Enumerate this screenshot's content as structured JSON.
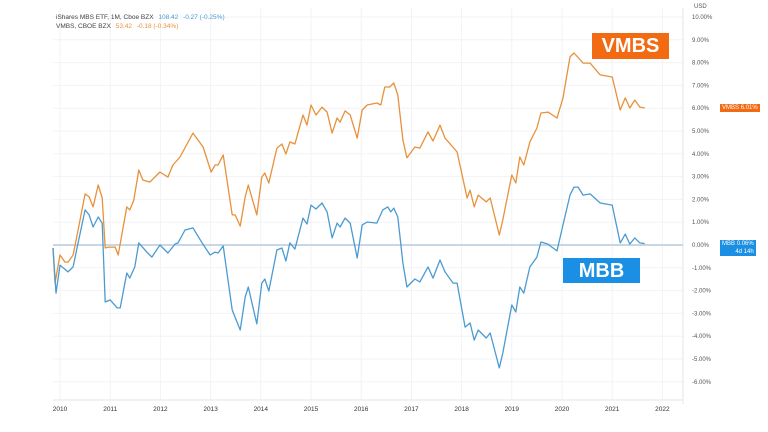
{
  "legend": {
    "series1": {
      "name": "iShares MBS ETF, 1M, Cboe BZX",
      "price": "108.42",
      "change": "-0.27 (-0.25%)"
    },
    "series2": {
      "name": "VMBS, CBOE BZX",
      "price": "53.42",
      "change": "-0.18 (-0.34%)"
    }
  },
  "annotations": {
    "vmbs_badge": "VMBS",
    "mbb_badge": "MBB"
  },
  "price_tags": {
    "vmbs": {
      "symbol": "VMBS",
      "value": "6.01%"
    },
    "mbb": {
      "symbol": "MBB",
      "value": "0.06%",
      "countdown": "4d 14h"
    }
  },
  "colors": {
    "vmbs": "#e8913a",
    "mbb": "#4b9bd1",
    "vmbs_badge": "#f26b12",
    "mbb_badge": "#1a8fe3",
    "baseline": "#c9d6e3"
  },
  "chart_data": {
    "type": "line",
    "title": "",
    "xlabel": "",
    "ylabel": "",
    "currency_label": "USD",
    "xlim": [
      2009.86,
      2022.35
    ],
    "ylim": [
      -6.8,
      10.3
    ],
    "x_ticks": [
      "2010",
      "2011",
      "2012",
      "2013",
      "2014",
      "2015",
      "2016",
      "2017",
      "2018",
      "2019",
      "2020",
      "2021",
      "2022"
    ],
    "y_ticks": [
      "10.00%",
      "9.00%",
      "8.00%",
      "7.00%",
      "6.00%",
      "5.00%",
      "4.00%",
      "3.00%",
      "2.00%",
      "1.00%",
      "0.00%",
      "-1.00%",
      "-2.00%",
      "-3.00%",
      "-4.00%",
      "-5.00%",
      "-6.00%"
    ],
    "y_tick_values": [
      10,
      9,
      8,
      7,
      6,
      5,
      4,
      3,
      2,
      1,
      0,
      -1,
      -2,
      -3,
      -4,
      -5,
      -6
    ],
    "grid": true,
    "baseline": 0,
    "series": [
      {
        "name": "VMBS",
        "points": [
          [
            2009.86,
            -0.13
          ],
          [
            2009.9,
            -1.67
          ],
          [
            2010.0,
            -0.44
          ],
          [
            2010.1,
            -0.75
          ],
          [
            2010.16,
            -0.75
          ],
          [
            2010.26,
            -0.44
          ],
          [
            2010.36,
            0.66
          ],
          [
            2010.5,
            2.24
          ],
          [
            2010.58,
            2.11
          ],
          [
            2010.66,
            1.67
          ],
          [
            2010.76,
            2.63
          ],
          [
            2010.84,
            2.06
          ],
          [
            2010.9,
            -0.13
          ],
          [
            2010.96,
            -0.09
          ],
          [
            2011.1,
            -0.09
          ],
          [
            2011.16,
            -0.44
          ],
          [
            2011.33,
            1.67
          ],
          [
            2011.39,
            1.54
          ],
          [
            2011.47,
            1.97
          ],
          [
            2011.57,
            3.29
          ],
          [
            2011.65,
            2.85
          ],
          [
            2011.79,
            2.76
          ],
          [
            2011.99,
            3.2
          ],
          [
            2012.15,
            2.98
          ],
          [
            2012.25,
            3.51
          ],
          [
            2012.39,
            3.86
          ],
          [
            2012.65,
            4.91
          ],
          [
            2012.85,
            4.3
          ],
          [
            2013.01,
            3.2
          ],
          [
            2013.09,
            3.51
          ],
          [
            2013.15,
            3.51
          ],
          [
            2013.25,
            3.95
          ],
          [
            2013.43,
            1.32
          ],
          [
            2013.49,
            1.32
          ],
          [
            2013.59,
            0.83
          ],
          [
            2013.69,
            2.11
          ],
          [
            2013.75,
            2.63
          ],
          [
            2013.92,
            1.32
          ],
          [
            2014.02,
            2.98
          ],
          [
            2014.08,
            3.16
          ],
          [
            2014.16,
            2.72
          ],
          [
            2014.32,
            4.25
          ],
          [
            2014.42,
            4.43
          ],
          [
            2014.5,
            3.99
          ],
          [
            2014.58,
            4.52
          ],
          [
            2014.68,
            4.43
          ],
          [
            2014.84,
            5.7
          ],
          [
            2014.92,
            5.26
          ],
          [
            2015.0,
            6.14
          ],
          [
            2015.1,
            5.7
          ],
          [
            2015.22,
            6.05
          ],
          [
            2015.32,
            5.83
          ],
          [
            2015.42,
            4.91
          ],
          [
            2015.52,
            5.57
          ],
          [
            2015.58,
            5.39
          ],
          [
            2015.68,
            5.88
          ],
          [
            2015.78,
            5.7
          ],
          [
            2015.92,
            4.69
          ],
          [
            2016.02,
            5.92
          ],
          [
            2016.12,
            6.14
          ],
          [
            2016.31,
            6.23
          ],
          [
            2016.39,
            6.14
          ],
          [
            2016.47,
            6.93
          ],
          [
            2016.57,
            6.93
          ],
          [
            2016.65,
            7.11
          ],
          [
            2016.73,
            6.58
          ],
          [
            2016.83,
            4.61
          ],
          [
            2016.91,
            3.82
          ],
          [
            2017.07,
            4.3
          ],
          [
            2017.17,
            4.25
          ],
          [
            2017.33,
            4.96
          ],
          [
            2017.43,
            4.56
          ],
          [
            2017.57,
            5.26
          ],
          [
            2017.67,
            4.69
          ],
          [
            2017.91,
            4.08
          ],
          [
            2018.11,
            2.06
          ],
          [
            2018.17,
            2.41
          ],
          [
            2018.25,
            1.67
          ],
          [
            2018.33,
            2.19
          ],
          [
            2018.49,
            1.89
          ],
          [
            2018.57,
            2.06
          ],
          [
            2018.75,
            0.44
          ],
          [
            2018.82,
            1.1
          ],
          [
            2019.0,
            3.07
          ],
          [
            2019.08,
            2.72
          ],
          [
            2019.16,
            3.86
          ],
          [
            2019.24,
            3.51
          ],
          [
            2019.36,
            4.52
          ],
          [
            2019.5,
            5.13
          ],
          [
            2019.58,
            5.79
          ],
          [
            2019.72,
            5.83
          ],
          [
            2019.9,
            5.57
          ],
          [
            2020.02,
            6.45
          ],
          [
            2020.16,
            8.25
          ],
          [
            2020.24,
            8.42
          ],
          [
            2020.42,
            7.98
          ],
          [
            2020.56,
            7.98
          ],
          [
            2020.76,
            7.46
          ],
          [
            2021.0,
            7.37
          ],
          [
            2021.16,
            5.92
          ],
          [
            2021.26,
            6.45
          ],
          [
            2021.35,
            6.01
          ],
          [
            2021.45,
            6.36
          ],
          [
            2021.55,
            6.05
          ],
          [
            2021.65,
            6.01
          ]
        ]
      },
      {
        "name": "MBB",
        "points": [
          [
            2009.86,
            -0.13
          ],
          [
            2009.92,
            -2.11
          ],
          [
            2010.0,
            -0.88
          ],
          [
            2010.16,
            -1.18
          ],
          [
            2010.26,
            -0.96
          ],
          [
            2010.36,
            0.09
          ],
          [
            2010.5,
            1.54
          ],
          [
            2010.58,
            1.32
          ],
          [
            2010.66,
            0.79
          ],
          [
            2010.76,
            1.23
          ],
          [
            2010.84,
            0.96
          ],
          [
            2010.9,
            -2.5
          ],
          [
            2011.0,
            -2.41
          ],
          [
            2011.14,
            -2.76
          ],
          [
            2011.2,
            -2.76
          ],
          [
            2011.33,
            -1.23
          ],
          [
            2011.39,
            -1.45
          ],
          [
            2011.49,
            -0.96
          ],
          [
            2011.57,
            0.09
          ],
          [
            2011.73,
            -0.31
          ],
          [
            2011.83,
            -0.53
          ],
          [
            2011.99,
            0.0
          ],
          [
            2012.15,
            -0.35
          ],
          [
            2012.29,
            0.04
          ],
          [
            2012.35,
            0.09
          ],
          [
            2012.49,
            0.66
          ],
          [
            2012.65,
            0.75
          ],
          [
            2012.83,
            0.09
          ],
          [
            2012.99,
            -0.44
          ],
          [
            2013.09,
            -0.31
          ],
          [
            2013.15,
            -0.35
          ],
          [
            2013.25,
            -0.04
          ],
          [
            2013.43,
            -2.85
          ],
          [
            2013.59,
            -3.73
          ],
          [
            2013.69,
            -2.28
          ],
          [
            2013.75,
            -1.84
          ],
          [
            2013.92,
            -3.46
          ],
          [
            2014.02,
            -1.67
          ],
          [
            2014.08,
            -1.49
          ],
          [
            2014.16,
            -2.02
          ],
          [
            2014.32,
            -0.22
          ],
          [
            2014.42,
            -0.13
          ],
          [
            2014.5,
            -0.7
          ],
          [
            2014.58,
            0.09
          ],
          [
            2014.68,
            -0.18
          ],
          [
            2014.84,
            1.18
          ],
          [
            2014.92,
            0.92
          ],
          [
            2015.0,
            1.75
          ],
          [
            2015.1,
            1.58
          ],
          [
            2015.22,
            1.84
          ],
          [
            2015.32,
            1.45
          ],
          [
            2015.42,
            0.31
          ],
          [
            2015.52,
            0.96
          ],
          [
            2015.58,
            0.79
          ],
          [
            2015.68,
            1.18
          ],
          [
            2015.78,
            0.96
          ],
          [
            2015.92,
            -0.57
          ],
          [
            2016.02,
            0.88
          ],
          [
            2016.12,
            1.01
          ],
          [
            2016.31,
            0.96
          ],
          [
            2016.43,
            1.54
          ],
          [
            2016.53,
            1.67
          ],
          [
            2016.59,
            1.45
          ],
          [
            2016.65,
            1.62
          ],
          [
            2016.73,
            1.23
          ],
          [
            2016.83,
            -0.79
          ],
          [
            2016.91,
            -1.84
          ],
          [
            2017.07,
            -1.49
          ],
          [
            2017.17,
            -1.62
          ],
          [
            2017.33,
            -0.96
          ],
          [
            2017.43,
            -1.45
          ],
          [
            2017.57,
            -0.66
          ],
          [
            2017.67,
            -1.18
          ],
          [
            2017.83,
            -1.67
          ],
          [
            2017.91,
            -1.67
          ],
          [
            2018.07,
            -3.6
          ],
          [
            2018.17,
            -3.42
          ],
          [
            2018.25,
            -4.17
          ],
          [
            2018.33,
            -3.73
          ],
          [
            2018.49,
            -4.08
          ],
          [
            2018.57,
            -3.86
          ],
          [
            2018.75,
            -5.39
          ],
          [
            2018.82,
            -4.74
          ],
          [
            2019.0,
            -2.63
          ],
          [
            2019.08,
            -2.94
          ],
          [
            2019.16,
            -1.84
          ],
          [
            2019.24,
            -2.11
          ],
          [
            2019.36,
            -0.96
          ],
          [
            2019.5,
            -0.53
          ],
          [
            2019.58,
            0.13
          ],
          [
            2019.72,
            0.04
          ],
          [
            2019.9,
            -0.26
          ],
          [
            2020.02,
            0.88
          ],
          [
            2020.16,
            2.19
          ],
          [
            2020.24,
            2.54
          ],
          [
            2020.32,
            2.54
          ],
          [
            2020.42,
            2.19
          ],
          [
            2020.56,
            2.24
          ],
          [
            2020.76,
            1.84
          ],
          [
            2021.0,
            1.75
          ],
          [
            2021.16,
            0.09
          ],
          [
            2021.26,
            0.48
          ],
          [
            2021.35,
            0.04
          ],
          [
            2021.45,
            0.31
          ],
          [
            2021.55,
            0.09
          ],
          [
            2021.65,
            0.06
          ]
        ]
      }
    ]
  }
}
